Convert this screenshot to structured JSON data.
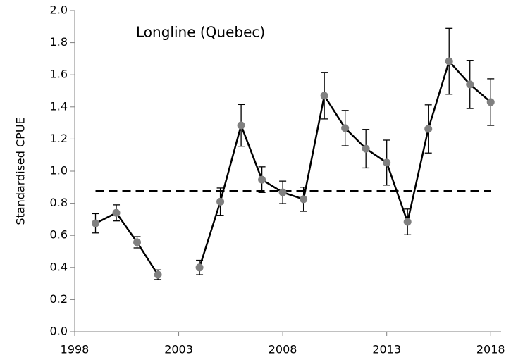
{
  "chart_data": {
    "type": "line",
    "annotation": "Longline (Quebec)",
    "y_label": "Standardised CPUE",
    "x": [
      1999,
      2000,
      2001,
      2002,
      2003,
      2004,
      2005,
      2006,
      2007,
      2008,
      2009,
      2010,
      2011,
      2012,
      2013,
      2014,
      2015,
      2016,
      2017,
      2018
    ],
    "series": [
      {
        "color": "#000000",
        "marker_color": "#808080",
        "values": [
          0.675,
          0.74,
          0.557,
          0.355,
          null,
          0.4,
          0.81,
          1.285,
          0.947,
          0.868,
          0.825,
          1.47,
          1.268,
          1.14,
          1.053,
          0.684,
          1.263,
          1.684,
          1.54,
          1.43
        ],
        "errors": [
          0.06,
          0.05,
          0.035,
          0.03,
          null,
          0.045,
          0.085,
          0.13,
          0.08,
          0.07,
          0.075,
          0.145,
          0.11,
          0.12,
          0.14,
          0.08,
          0.15,
          0.205,
          0.15,
          0.145
        ]
      }
    ],
    "reference_line": {
      "value": 0.875,
      "x": [
        1999,
        2018
      ]
    },
    "xlim": [
      1998,
      2018.5
    ],
    "xticks": [
      1998,
      2003,
      2008,
      2013,
      2018
    ],
    "ylim": [
      0,
      2
    ],
    "yticks": [
      {
        "value": 0,
        "label": "0.0"
      },
      0.2,
      0.4,
      0.6,
      0.8,
      {
        "value": 1,
        "label": "1.0"
      },
      1.2,
      1.4,
      1.6,
      1.8,
      {
        "value": 2,
        "label": "2.0"
      }
    ]
  }
}
